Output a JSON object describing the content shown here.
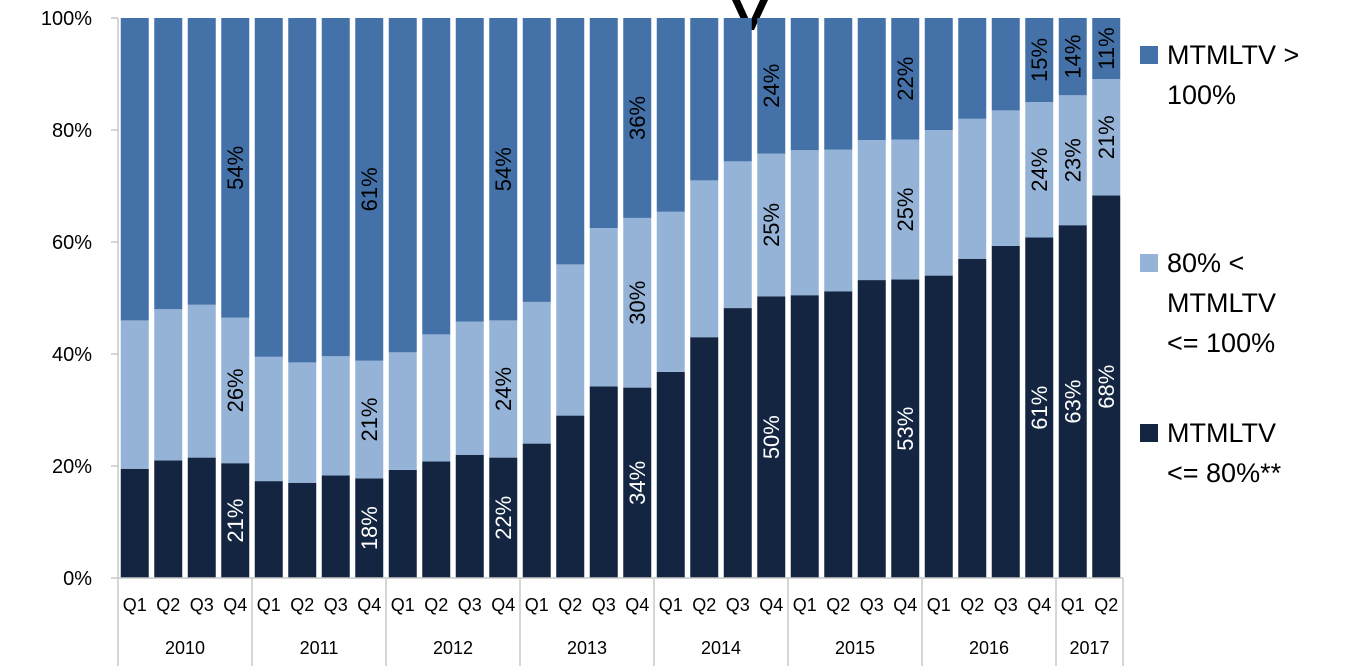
{
  "chart_data": {
    "type": "bar",
    "stacked": true,
    "normalized": true,
    "ylim": [
      0,
      100
    ],
    "yticks": [
      "0%",
      "20%",
      "40%",
      "60%",
      "80%",
      "100%"
    ],
    "categories": [
      "Q1",
      "Q2",
      "Q3",
      "Q4",
      "Q1",
      "Q2",
      "Q3",
      "Q4",
      "Q1",
      "Q2",
      "Q3",
      "Q4",
      "Q1",
      "Q2",
      "Q3",
      "Q4",
      "Q1",
      "Q2",
      "Q3",
      "Q4",
      "Q1",
      "Q2",
      "Q3",
      "Q4",
      "Q1",
      "Q2",
      "Q3",
      "Q4",
      "Q1",
      "Q2"
    ],
    "year_groups": [
      {
        "label": "2010",
        "count": 4
      },
      {
        "label": "2011",
        "count": 4
      },
      {
        "label": "2012",
        "count": 4
      },
      {
        "label": "2013",
        "count": 4
      },
      {
        "label": "2014",
        "count": 4
      },
      {
        "label": "2015",
        "count": 4
      },
      {
        "label": "2016",
        "count": 4
      },
      {
        "label": "2017",
        "count": 2
      }
    ],
    "series": [
      {
        "name": "MTMLTV <= 80%**",
        "color": "#132541",
        "label_color": "#ffffff",
        "values": [
          19.5,
          21,
          21.5,
          20.5,
          17.3,
          17,
          18.3,
          17.8,
          19.3,
          20.8,
          22,
          21.5,
          24,
          29,
          34.2,
          34,
          36.8,
          43,
          48.2,
          50.3,
          50.5,
          51.2,
          53.2,
          53.3,
          54,
          57,
          59.3,
          60.8,
          63,
          68.3
        ],
        "labels": [
          null,
          null,
          null,
          "21%",
          null,
          null,
          null,
          "18%",
          null,
          null,
          null,
          "22%",
          null,
          null,
          null,
          "34%",
          null,
          null,
          null,
          "50%",
          null,
          null,
          null,
          "53%",
          null,
          null,
          null,
          "61%",
          "63%",
          "68%"
        ]
      },
      {
        "name": "80% < MTMLTV <= 100%",
        "color": "#95b3d7",
        "label_color": "#000000",
        "values": [
          26.5,
          27,
          27.3,
          26,
          22.2,
          21.5,
          21.3,
          21,
          21,
          22.7,
          23.8,
          24.5,
          25.3,
          27,
          28.3,
          30.3,
          28.6,
          28,
          26.2,
          25.5,
          25.9,
          25.3,
          25,
          25,
          26,
          25,
          24.2,
          24.2,
          23.2,
          20.8
        ],
        "labels": [
          null,
          null,
          null,
          "26%",
          null,
          null,
          null,
          "21%",
          null,
          null,
          null,
          "24%",
          null,
          null,
          null,
          "30%",
          null,
          null,
          null,
          "25%",
          null,
          null,
          null,
          "25%",
          null,
          null,
          null,
          "24%",
          "23%",
          "21%"
        ]
      },
      {
        "name": "MTMLTV > 100%",
        "color": "#4472a8",
        "label_color": "#000000",
        "values": [
          54,
          52,
          51.2,
          53.5,
          60.5,
          61.5,
          60.4,
          61.2,
          59.7,
          56.5,
          54.2,
          54,
          50.7,
          44,
          37.5,
          35.7,
          34.6,
          29,
          25.6,
          24.2,
          23.6,
          23.5,
          21.8,
          21.7,
          20,
          18,
          16.5,
          15,
          13.8,
          10.9
        ],
        "labels": [
          null,
          null,
          null,
          "54%",
          null,
          null,
          null,
          "61%",
          null,
          null,
          null,
          "54%",
          null,
          null,
          null,
          "36%",
          null,
          null,
          null,
          "24%",
          null,
          null,
          null,
          "22%",
          null,
          null,
          null,
          "15%",
          "14%",
          "11%"
        ]
      }
    ],
    "legend": {
      "position": "right",
      "items": [
        {
          "lines": [
            "MTMLTV >",
            "100%"
          ],
          "color": "#4472a8"
        },
        {
          "lines": [
            "80% <",
            "MTMLTV",
            "<= 100%"
          ],
          "color": "#95b3d7"
        },
        {
          "lines": [
            "MTMLTV",
            "<= 80%**"
          ],
          "color": "#132541"
        }
      ]
    },
    "grid": false
  }
}
